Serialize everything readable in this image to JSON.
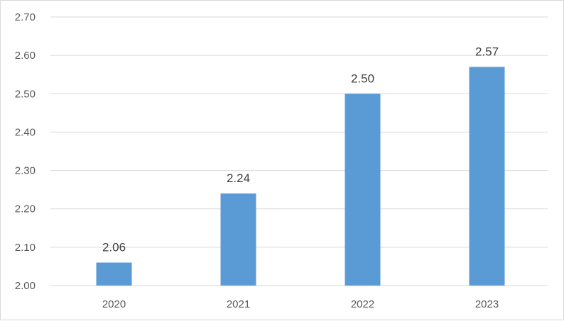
{
  "chart_data": {
    "type": "bar",
    "categories": [
      "2020",
      "2021",
      "2022",
      "2023"
    ],
    "values": [
      2.06,
      2.24,
      2.5,
      2.57
    ],
    "value_labels": [
      "2.06",
      "2.24",
      "2.50",
      "2.57"
    ],
    "y_ticks": [
      "2.00",
      "2.10",
      "2.20",
      "2.30",
      "2.40",
      "2.50",
      "2.60",
      "2.70"
    ],
    "ylim": [
      2.0,
      2.7
    ],
    "bar_color": "#5b9bd5",
    "grid": true,
    "legend": "none",
    "title": "",
    "xlabel": "",
    "ylabel": ""
  }
}
